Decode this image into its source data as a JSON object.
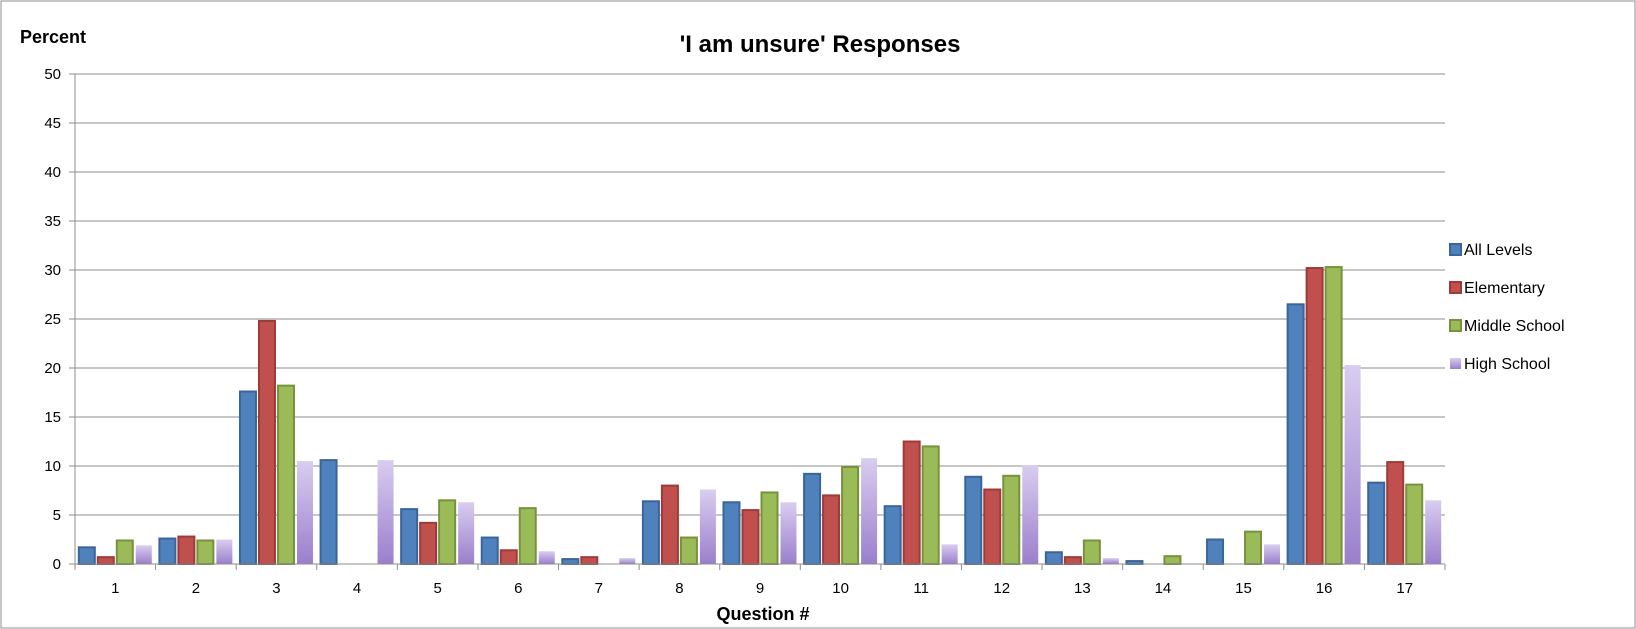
{
  "chart_data": {
    "type": "bar",
    "title": "'I am unsure' Responses",
    "ylabel": "Percent",
    "xlabel": "Question #",
    "ylim": [
      0,
      50
    ],
    "yticks": [
      0,
      5,
      10,
      15,
      20,
      25,
      30,
      35,
      40,
      45,
      50
    ],
    "grid": true,
    "legend_position": "right",
    "categories": [
      "1",
      "2",
      "3",
      "4",
      "5",
      "6",
      "7",
      "8",
      "9",
      "10",
      "11",
      "12",
      "13",
      "14",
      "15",
      "16",
      "17"
    ],
    "series": [
      {
        "name": "All Levels",
        "color": "#4F81BD",
        "values": [
          1.7,
          2.6,
          17.6,
          10.6,
          5.6,
          2.7,
          0.5,
          6.4,
          6.3,
          9.2,
          5.9,
          8.9,
          1.2,
          0.3,
          2.5,
          26.5,
          8.3
        ]
      },
      {
        "name": "Elementary",
        "color": "#C0504D",
        "values": [
          0.7,
          2.8,
          24.8,
          0,
          4.2,
          1.4,
          0.7,
          8.0,
          5.5,
          7.0,
          12.5,
          7.6,
          0.7,
          0,
          0,
          30.2,
          10.4
        ]
      },
      {
        "name": "Middle School",
        "color": "#9BBB59",
        "values": [
          2.4,
          2.4,
          18.2,
          0,
          6.5,
          5.7,
          0,
          2.7,
          7.3,
          9.9,
          12.0,
          9.0,
          2.4,
          0.8,
          3.3,
          30.3,
          8.1
        ]
      },
      {
        "name": "High School",
        "color": "#B7A2DA",
        "values": [
          1.9,
          2.5,
          10.5,
          10.6,
          6.3,
          1.3,
          0.6,
          7.6,
          6.3,
          10.8,
          2.0,
          10.1,
          0.6,
          0,
          2.0,
          20.3,
          6.5
        ]
      }
    ]
  }
}
